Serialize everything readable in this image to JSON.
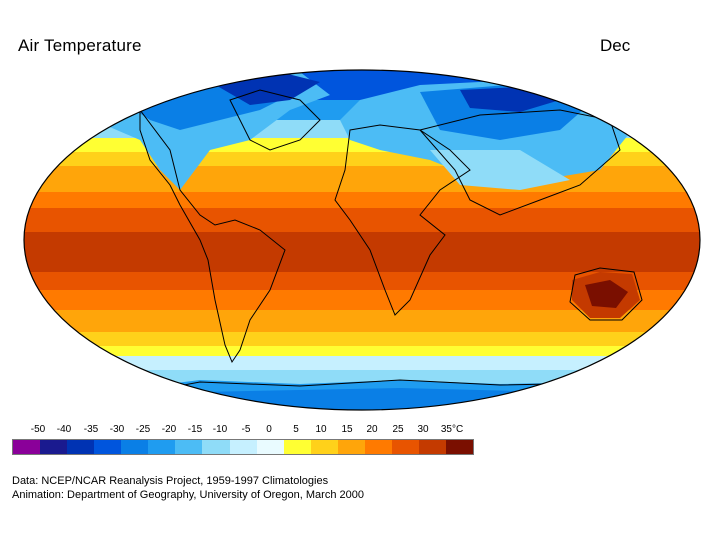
{
  "header": {
    "title": "Air Temperature",
    "month": "Dec"
  },
  "legend": {
    "ticks": [
      "-50",
      "-40",
      "-35",
      "-30",
      "-25",
      "-20",
      "-15",
      "-10",
      "-5",
      "0",
      "5",
      "10",
      "15",
      "20",
      "25",
      "30",
      "35°C"
    ],
    "colors": [
      "#8a0099",
      "#1a1a8f",
      "#0033b3",
      "#0055dd",
      "#0a7fe6",
      "#1f9cf0",
      "#4cbcf5",
      "#8fdcf8",
      "#c6f0ff",
      "#e9fbff",
      "#ffff33",
      "#ffd11a",
      "#ffa50a",
      "#ff7a00",
      "#e85400",
      "#c43a00",
      "#7a0f00"
    ]
  },
  "credits": {
    "line1": "Data:  NCEP/NCAR Reanalysis Project, 1959-1997 Climatologies",
    "line2": "Animation:  Department of Geography, University of Oregon, March 2000"
  }
}
